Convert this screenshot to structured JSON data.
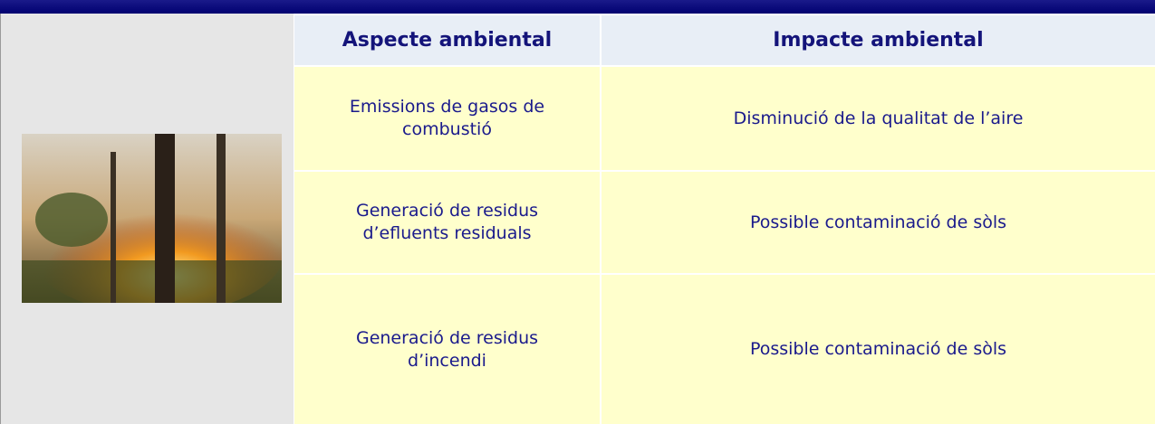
{
  "table": {
    "header": [
      "Aspecte ambiental",
      "Impacte ambiental"
    ],
    "rows": [
      [
        "Emissions de gasos de combustió",
        "Disminució de la qualitat de l’aire"
      ],
      [
        "Generació de residus d’efluents residuals",
        "Possible contaminació de sòls"
      ],
      [
        "Generació de residus d’incendi",
        "Possible contaminació de sòls"
      ]
    ]
  }
}
